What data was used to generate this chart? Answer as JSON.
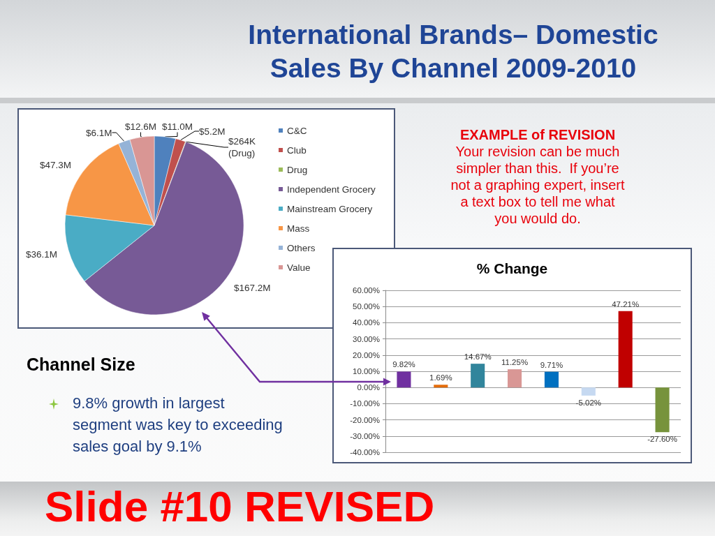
{
  "chart_data": [
    {
      "type": "pie",
      "title": "International Brands– Domestic Sales By Channel 2009-2010",
      "categories": [
        "C&C",
        "Club",
        "Drug",
        "Independent Grocery",
        "Mainstream Grocery",
        "Mass",
        "Others",
        "Value"
      ],
      "values": [
        11000000,
        5200000,
        264000,
        167200000,
        36100000,
        47300000,
        6100000,
        12600000
      ],
      "colors": [
        "#4f81bd",
        "#c0504d",
        "#9bbb59",
        "#775a96",
        "#4aacc5",
        "#f79646",
        "#95b3d7",
        "#d99694"
      ],
      "value_labels": [
        "$11.0M",
        "$5.2M",
        "$264K\n(Drug)",
        "$167.2M",
        "$36.1M",
        "$47.3M",
        "$6.1M",
        "$12.6M"
      ],
      "legend": "right",
      "annotations": [
        "EXAMPLE of REVISION",
        "Your revision can be much simpler than this.  If you’re not a graphing expert, insert a text box to tell me what you would do.",
        "Channel Size",
        "9.8% growth in largest segment was key to exceeding sales goal by 9.1%",
        "Slide #10 REVISED"
      ]
    },
    {
      "type": "bar",
      "title": "% Change",
      "categories": [
        null,
        null,
        null,
        null,
        null,
        null,
        null,
        null
      ],
      "values": [
        9.82,
        1.69,
        14.67,
        11.25,
        9.71,
        -5.02,
        47.21,
        -27.6
      ],
      "colors": [
        "#7030a0",
        "#e46c0a",
        "#31859c",
        "#d99795",
        "#0070c0",
        "#c6d9f1",
        "#c00000",
        "#77933c"
      ],
      "value_labels": [
        "9.82%",
        "1.69%",
        "14.67%",
        "11.25%",
        "9.71%",
        "-5.02%",
        "47.21%",
        "-27.60%"
      ],
      "ylim": [
        -40,
        60
      ],
      "yticks": [
        {
          "value": -40,
          "label": "-40.00%"
        },
        {
          "value": -30,
          "label": "-30.00%"
        },
        {
          "value": -20,
          "label": "-20.00%"
        },
        {
          "value": -10,
          "label": "-10.00%"
        },
        {
          "value": 0,
          "label": "0.00%"
        },
        {
          "value": 10,
          "label": "10.00%"
        },
        {
          "value": 20,
          "label": "20.00%"
        },
        {
          "value": 30,
          "label": "30.00%"
        },
        {
          "value": 40,
          "label": "40.00%"
        },
        {
          "value": 50,
          "label": "50.00%"
        },
        {
          "value": 60,
          "label": "60.00%"
        }
      ],
      "grid": "y"
    }
  ]
}
